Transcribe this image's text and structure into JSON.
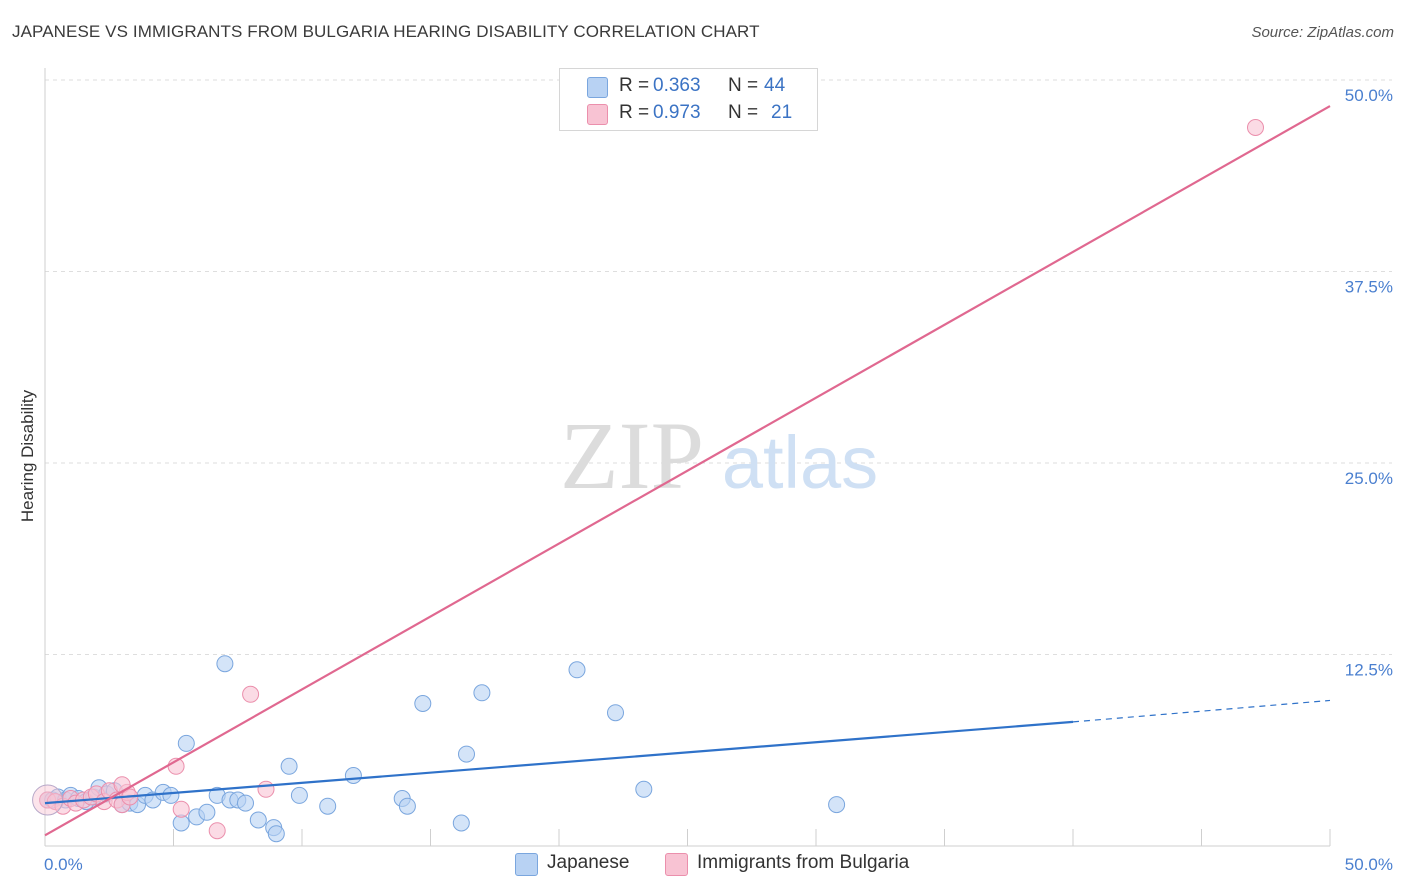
{
  "title": "JAPANESE VS IMMIGRANTS FROM BULGARIA HEARING DISABILITY CORRELATION CHART",
  "source": "Source: ZipAtlas.com",
  "watermark": {
    "zip": "ZIP",
    "atlas": "atlas"
  },
  "colors": {
    "japanese_fill": "#b8d2f3",
    "japanese_stroke": "#7aa6de",
    "japanese_line": "#2f72c9",
    "bulgaria_fill": "#f8c3d3",
    "bulgaria_stroke": "#eb8fac",
    "bulgaria_line": "#e06890",
    "tick_label": "#4a7fcf",
    "grid": "#dedede"
  },
  "legend": {
    "rows": [
      {
        "r_label": "R =",
        "r_value": "0.363",
        "n_label": "N =",
        "n_value": "44"
      },
      {
        "r_label": "R =",
        "r_value": "0.973",
        "n_label": "N =",
        "n_value": "21"
      }
    ]
  },
  "bottom_legend": {
    "japanese": "Japanese",
    "bulgaria": "Immigrants from Bulgaria"
  },
  "chart_data": {
    "type": "scatter",
    "title": "JAPANESE VS IMMIGRANTS FROM BULGARIA HEARING DISABILITY CORRELATION CHART",
    "xlabel": "",
    "ylabel": "Hearing Disability",
    "xlim": [
      0,
      50
    ],
    "ylim": [
      0,
      50
    ],
    "x_tick_labels": [
      "0.0%",
      "50.0%"
    ],
    "y_ticks": [
      12.5,
      25.0,
      37.5,
      50.0
    ],
    "y_tick_labels": [
      "12.5%",
      "25.0%",
      "37.5%",
      "50.0%"
    ],
    "grid": true,
    "legend_position": "top-center",
    "series": [
      {
        "name": "Japanese",
        "r": 0.363,
        "n": 44,
        "trend": {
          "x": [
            0.0,
            40.0
          ],
          "y": [
            2.8,
            8.1
          ],
          "dashed_to": [
            50.0,
            9.5
          ]
        },
        "points": [
          [
            0.1,
            3.0
          ],
          [
            0.3,
            3.0
          ],
          [
            0.5,
            3.2
          ],
          [
            0.8,
            3.0
          ],
          [
            1.0,
            3.3
          ],
          [
            1.3,
            3.1
          ],
          [
            1.6,
            2.9
          ],
          [
            1.9,
            3.2
          ],
          [
            2.1,
            3.8
          ],
          [
            2.4,
            3.4
          ],
          [
            2.7,
            3.6
          ],
          [
            3.0,
            2.7
          ],
          [
            3.3,
            2.8
          ],
          [
            3.6,
            2.7
          ],
          [
            3.9,
            3.3
          ],
          [
            4.2,
            3.0
          ],
          [
            4.6,
            3.5
          ],
          [
            4.9,
            3.3
          ],
          [
            5.3,
            1.5
          ],
          [
            5.5,
            6.7
          ],
          [
            5.9,
            1.9
          ],
          [
            6.3,
            2.2
          ],
          [
            6.7,
            3.3
          ],
          [
            7.0,
            11.9
          ],
          [
            7.2,
            3.0
          ],
          [
            7.5,
            3.0
          ],
          [
            7.8,
            2.8
          ],
          [
            8.3,
            1.7
          ],
          [
            8.9,
            1.2
          ],
          [
            9.0,
            0.8
          ],
          [
            9.5,
            5.2
          ],
          [
            9.9,
            3.3
          ],
          [
            11.0,
            2.6
          ],
          [
            12.0,
            4.6
          ],
          [
            13.9,
            3.1
          ],
          [
            14.1,
            2.6
          ],
          [
            14.7,
            9.3
          ],
          [
            16.2,
            1.5
          ],
          [
            16.4,
            6.0
          ],
          [
            17.0,
            10.0
          ],
          [
            20.7,
            11.5
          ],
          [
            22.2,
            8.7
          ],
          [
            23.3,
            3.7
          ],
          [
            30.8,
            2.7
          ]
        ]
      },
      {
        "name": "Immigrants from Bulgaria",
        "r": 0.973,
        "n": 21,
        "trend": {
          "x": [
            0.0,
            50.0
          ],
          "y": [
            0.7,
            48.3
          ]
        },
        "points": [
          [
            0.1,
            3.0
          ],
          [
            0.4,
            2.9
          ],
          [
            0.7,
            2.6
          ],
          [
            1.0,
            3.1
          ],
          [
            1.2,
            2.8
          ],
          [
            1.5,
            3.0
          ],
          [
            1.8,
            3.2
          ],
          [
            2.0,
            3.4
          ],
          [
            2.3,
            2.9
          ],
          [
            2.5,
            3.6
          ],
          [
            2.8,
            3.0
          ],
          [
            3.0,
            2.7
          ],
          [
            3.2,
            3.5
          ],
          [
            3.0,
            4.0
          ],
          [
            3.3,
            3.2
          ],
          [
            5.1,
            5.2
          ],
          [
            5.3,
            2.4
          ],
          [
            6.7,
            1.0
          ],
          [
            8.0,
            9.9
          ],
          [
            8.6,
            3.7
          ],
          [
            47.1,
            46.9
          ]
        ]
      }
    ]
  }
}
